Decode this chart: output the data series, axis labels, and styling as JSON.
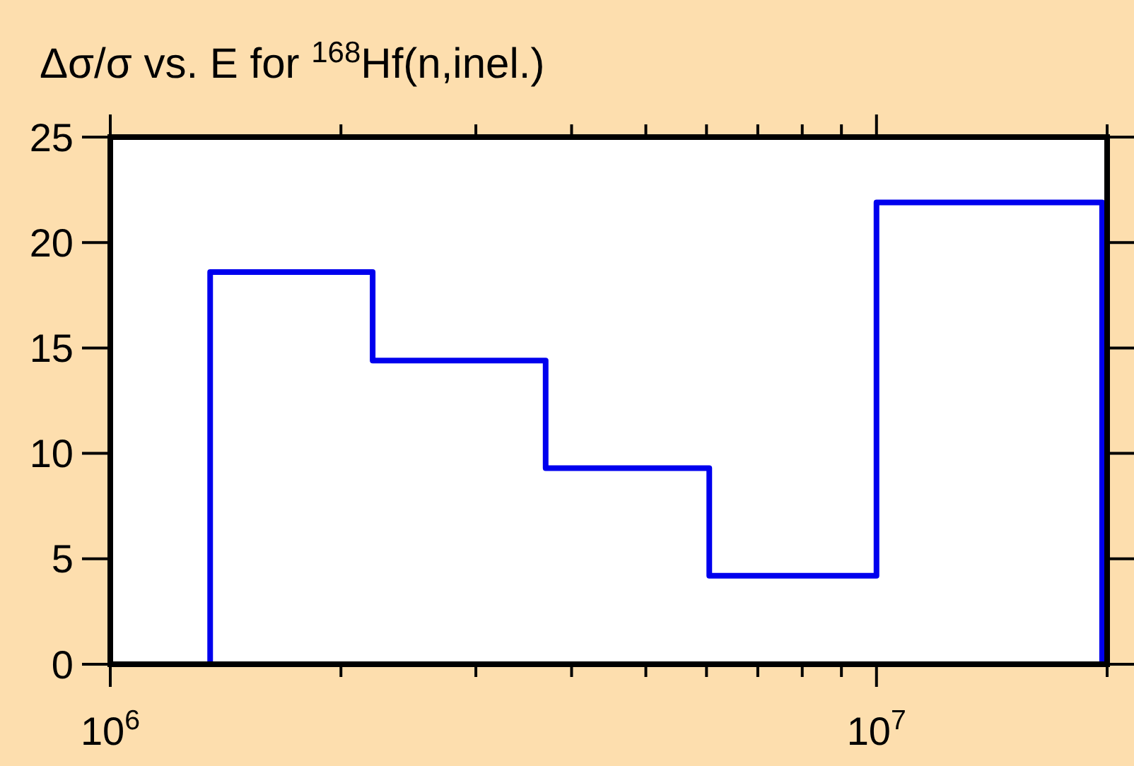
{
  "chart_data": {
    "type": "histogram",
    "title": "Δσ/σ vs. E for $^{168}$Hf(n,inel.)",
    "bins": [
      1350000.0,
      2200000.0,
      3700000.0,
      6050000.0,
      10000000.0,
      19700000.0
    ],
    "values": [
      18.6,
      14.4,
      9.3,
      4.2,
      21.9
    ],
    "color": "#0000ee",
    "log": "x",
    "xlim": [
      1000000.0,
      20000000.0
    ],
    "xticks": [
      {
        "value": 1000000.0,
        "label": "10$^{6}$"
      },
      {
        "value": 2000000.0,
        "label": null
      },
      {
        "value": 3000000.0,
        "label": null
      },
      {
        "value": 4000000.0,
        "label": null
      },
      {
        "value": 5000000.0,
        "label": null
      },
      {
        "value": 6000000.0,
        "label": null
      },
      {
        "value": 7000000.0,
        "label": null
      },
      {
        "value": 8000000.0,
        "label": null
      },
      {
        "value": 9000000.0,
        "label": null
      },
      {
        "value": 10000000.0,
        "label": "10$^{7}$"
      },
      {
        "value": 20000000.0,
        "label": null
      }
    ],
    "ylim": [
      0,
      25
    ],
    "yticks": [
      0,
      5,
      10,
      15,
      20,
      25
    ]
  }
}
